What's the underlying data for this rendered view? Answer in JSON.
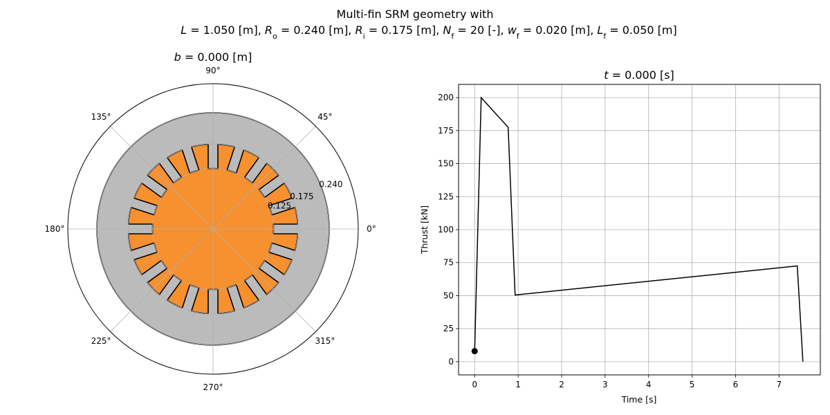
{
  "figure": {
    "suptitle_line1": "Multi-fin SRM geometry with",
    "suptitle_line2": "L = 1.050 [m], R_o = 0.240 [m], R_i = 0.175 [m], N_f = 20 [-], w_f = 0.020 [m], L_f = 0.050 [m]",
    "suptitle_parts": [
      {
        "t": "L",
        "i": true
      },
      {
        "t": " = 1.050 [m], "
      },
      {
        "t": "R",
        "i": true
      },
      {
        "t": "o",
        "sub": true
      },
      {
        "t": " = 0.240 [m], "
      },
      {
        "t": "R",
        "i": true
      },
      {
        "t": "i",
        "sub": true
      },
      {
        "t": " = 0.175 [m], "
      },
      {
        "t": "N",
        "i": true
      },
      {
        "t": "f",
        "sub": true
      },
      {
        "t": " = 20 [-], "
      },
      {
        "t": "w",
        "i": true
      },
      {
        "t": "f",
        "sub": true
      },
      {
        "t": " = 0.020 [m], "
      },
      {
        "t": "L",
        "i": true
      },
      {
        "t": "f",
        "sub": true
      },
      {
        "t": " = 0.050 [m]"
      }
    ]
  },
  "colors": {
    "propellant": "#f7902f",
    "casing": "#bbbbbb",
    "grid": "#b0b0b0",
    "line": "#000000"
  },
  "chart_data": [
    {
      "type": "polar",
      "title": "b = 0.000 [m]",
      "title_var": "b",
      "title_value": " = 0.000 [m]",
      "theta_ticks": [
        "0°",
        "45°",
        "90°",
        "135°",
        "180°",
        "225°",
        "270°",
        "315°"
      ],
      "r_ticks": [
        "0.125",
        "0.175",
        "0.240"
      ],
      "r_tick_values": [
        0.125,
        0.175,
        0.24
      ],
      "rmax": 0.3,
      "geometry": {
        "outer_radius": 0.24,
        "inner_radius": 0.175,
        "fin_count": 20,
        "fin_width": 0.02,
        "fin_length": 0.05
      }
    },
    {
      "type": "line",
      "title": "t = 0.000 [s]",
      "title_var": "t",
      "title_value": " = 0.000 [s]",
      "xlabel": "Time [s]",
      "ylabel": "Thrust [kN]",
      "xlim": [
        -0.37,
        7.95
      ],
      "ylim": [
        -10,
        210
      ],
      "xticks": [
        0,
        1,
        2,
        3,
        4,
        5,
        6,
        7
      ],
      "yticks": [
        0,
        25,
        50,
        75,
        100,
        125,
        150,
        175,
        200
      ],
      "xtick_labels": [
        "0",
        "1",
        "2",
        "3",
        "4",
        "5",
        "6",
        "7"
      ],
      "ytick_labels": [
        "0",
        "25",
        "50",
        "75",
        "100",
        "125",
        "150",
        "175",
        "200"
      ],
      "grid": true,
      "series": [
        {
          "x": [
            0.0,
            0.15,
            0.77,
            0.93,
            7.42,
            7.55
          ],
          "y": [
            8.0,
            200.0,
            177.5,
            50.5,
            72.5,
            0.0
          ]
        }
      ],
      "marker": {
        "x": 0.0,
        "y": 8.0
      }
    }
  ]
}
